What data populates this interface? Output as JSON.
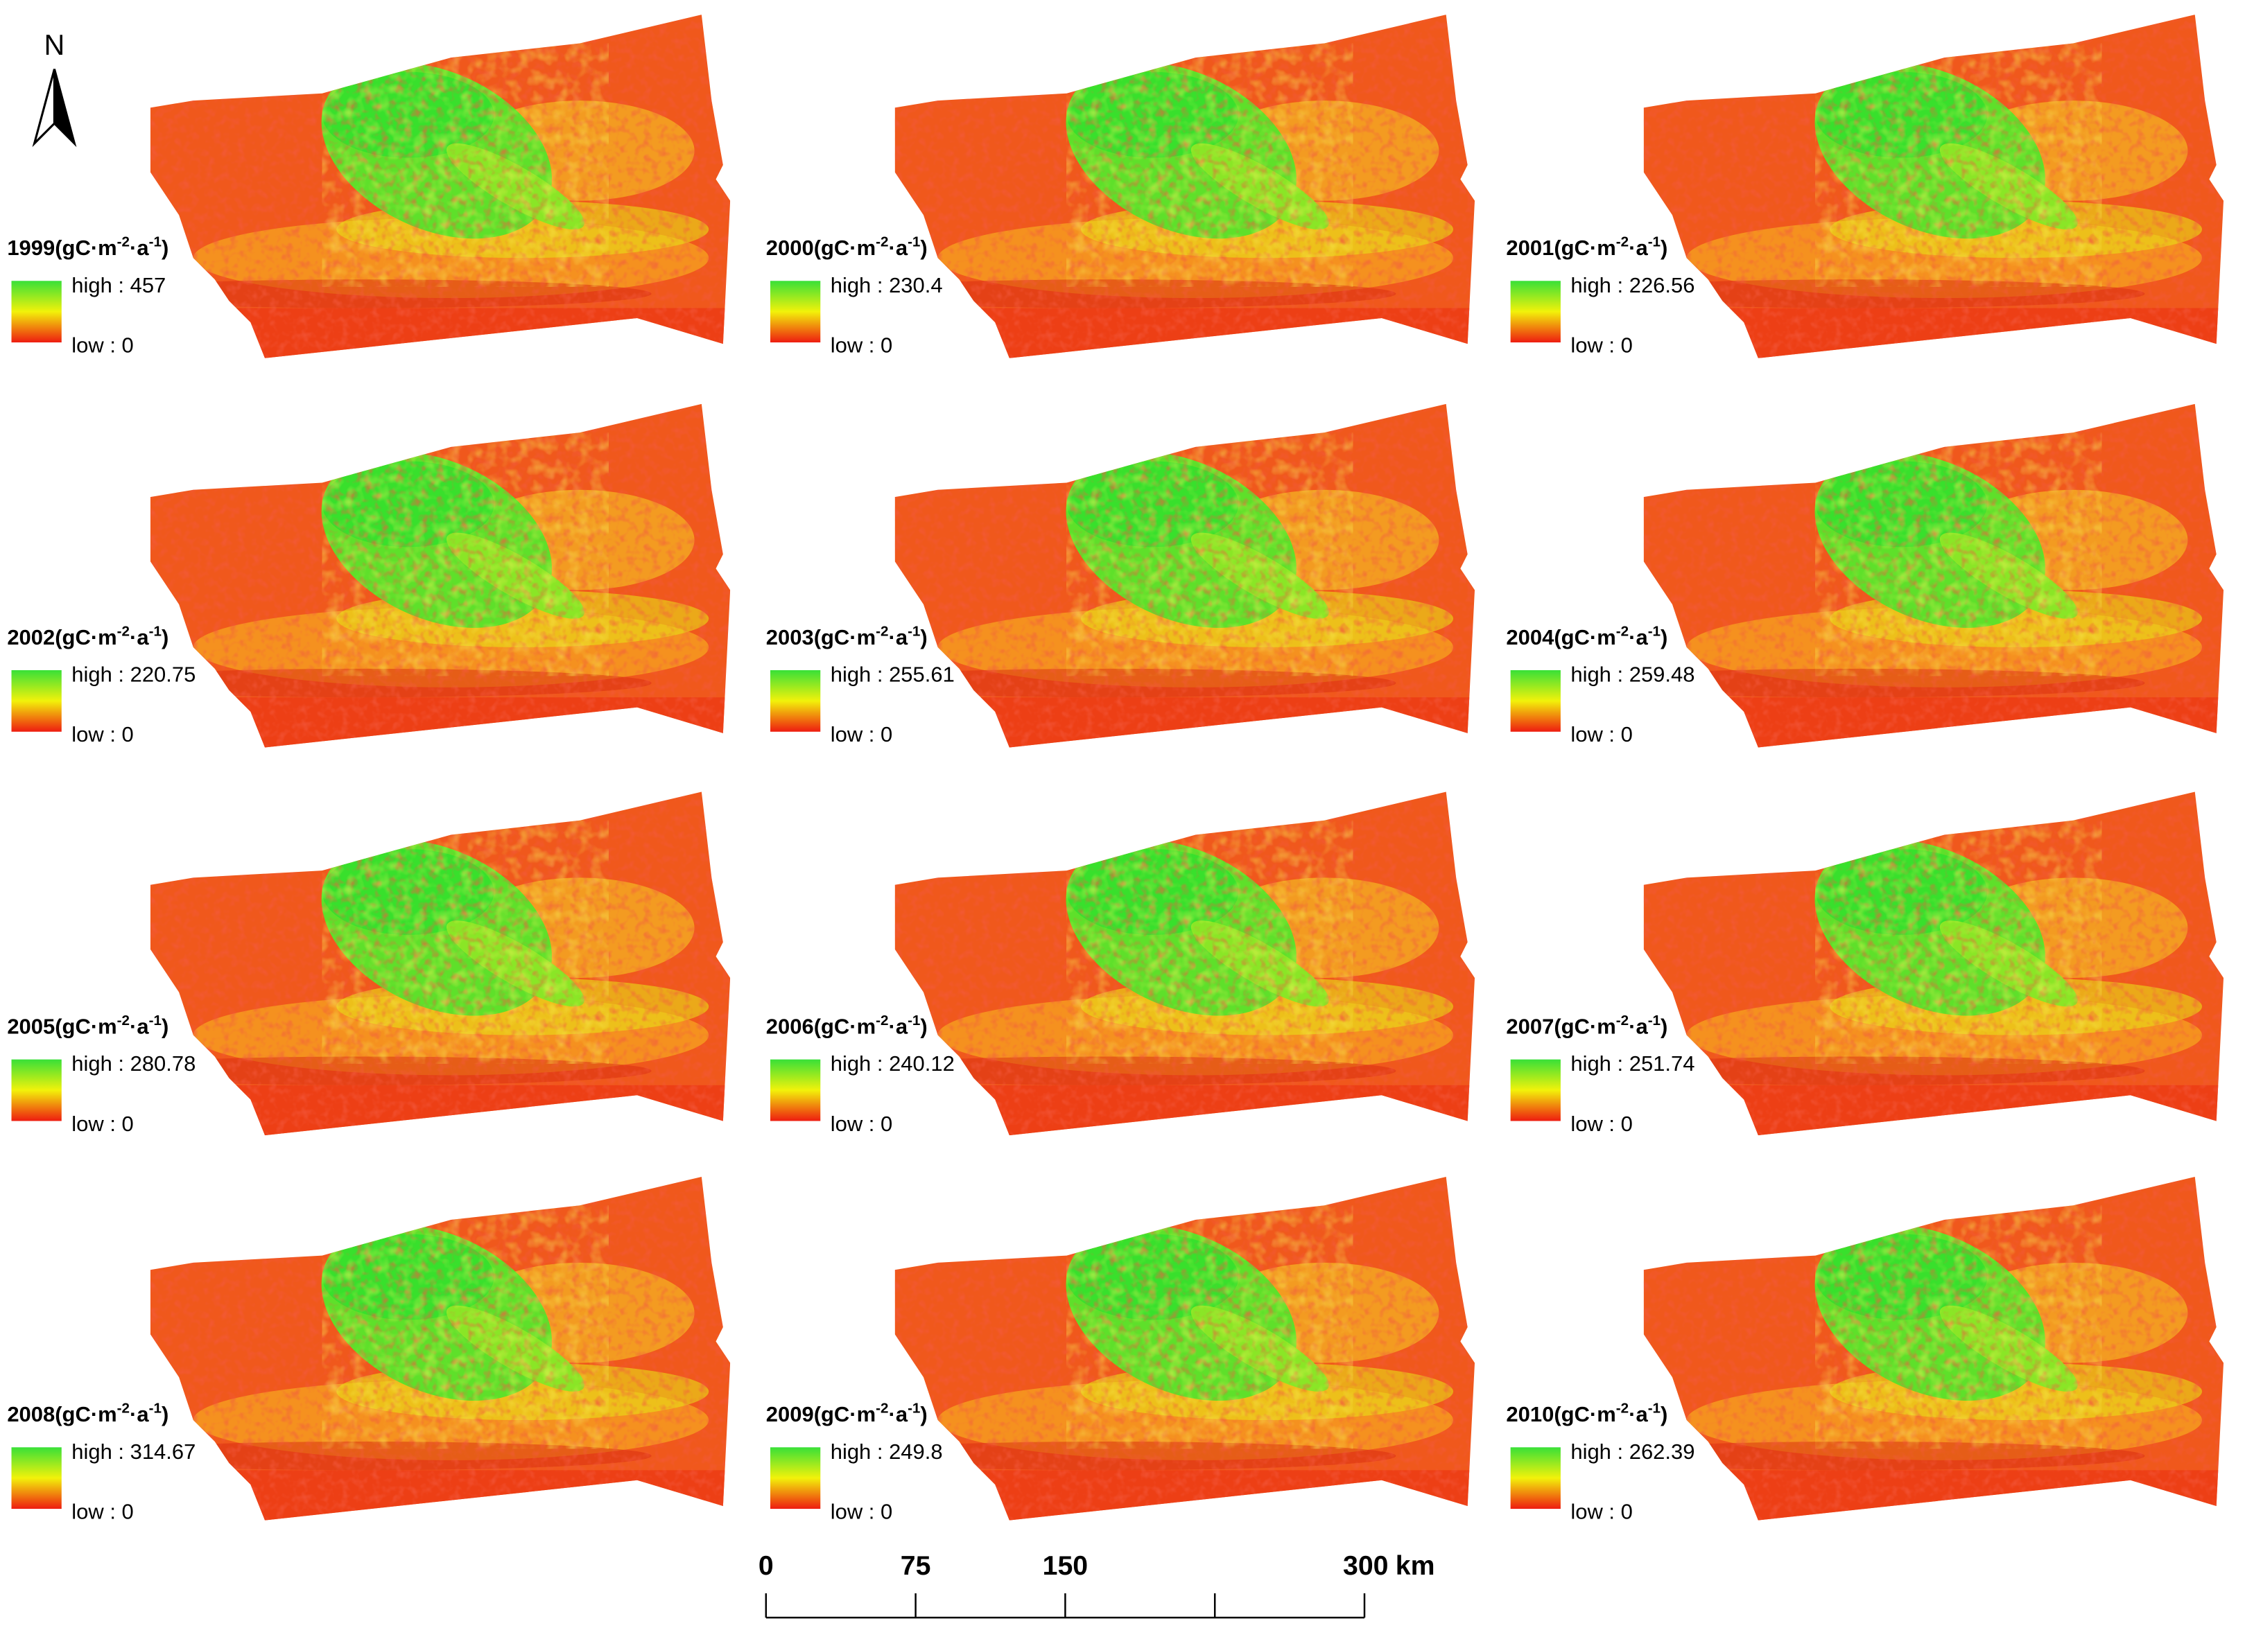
{
  "north": "N",
  "unit": {
    "open": "(gC·m",
    "exp1": "-2",
    "mid": "·a",
    "exp2": "-1",
    "close": ")"
  },
  "panels": [
    {
      "year": "1999",
      "high": "high : 457",
      "low": "low : 0"
    },
    {
      "year": "2000",
      "high": "high : 230.4",
      "low": "low : 0"
    },
    {
      "year": "2001",
      "high": "high : 226.56",
      "low": "low : 0"
    },
    {
      "year": "2002",
      "high": "high : 220.75",
      "low": "low : 0"
    },
    {
      "year": "2003",
      "high": "high : 255.61",
      "low": "low : 0"
    },
    {
      "year": "2004",
      "high": "high : 259.48",
      "low": "low : 0"
    },
    {
      "year": "2005",
      "high": "high : 280.78",
      "low": "low : 0"
    },
    {
      "year": "2006",
      "high": "high : 240.12",
      "low": "low : 0"
    },
    {
      "year": "2007",
      "high": "high : 251.74",
      "low": "low : 0"
    },
    {
      "year": "2008",
      "high": "high : 314.67",
      "low": "low : 0"
    },
    {
      "year": "2009",
      "high": "high : 249.8",
      "low": "low : 0"
    },
    {
      "year": "2010",
      "high": "high : 262.39",
      "low": "low : 0"
    }
  ],
  "scale_bar": {
    "ticks": [
      0,
      75,
      150,
      300
    ],
    "max": 300,
    "unit": "km"
  }
}
